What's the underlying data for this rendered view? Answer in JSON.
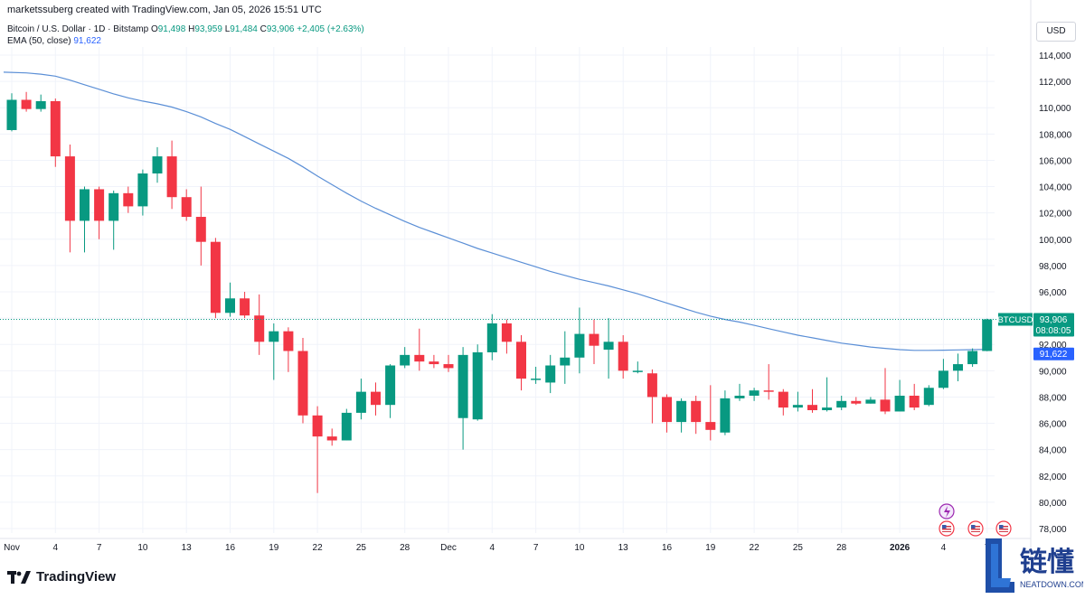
{
  "header": {
    "credit": "marketssuberg created with TradingView.com, Jan 05, 2026 15:51 UTC",
    "symbol": "Bitcoin / U.S. Dollar · 1D · Bitstamp",
    "ohlc": {
      "o_label": "O",
      "o": "91,498",
      "h_label": "H",
      "h": "93,959",
      "l_label": "L",
      "l": "91,484",
      "c_label": "C",
      "c": "93,906",
      "change": "+2,405 (+2.63%)"
    },
    "ema_label": "EMA (50, close)",
    "ema_value": "91,622"
  },
  "currency_button": "USD",
  "footer": {
    "brand": "TradingView"
  },
  "watermark": {
    "cn": "链懂",
    "en": "NEATDOWN.COM"
  },
  "colors": {
    "up": "#089981",
    "down": "#f23645",
    "ema": "#5b8fd6",
    "last_price_line": "#089981",
    "grid": "#f0f3fa"
  },
  "chart_data": {
    "type": "candlestick",
    "interval": "1D",
    "ylim": [
      77000,
      116000
    ],
    "y_ticks": [
      "114,000",
      "112,000",
      "110,000",
      "108,000",
      "106,000",
      "104,000",
      "102,000",
      "100,000",
      "98,000",
      "96,000",
      "94,000",
      "92,000",
      "90,000",
      "88,000",
      "86,000",
      "84,000",
      "82,000",
      "80,000",
      "78,000"
    ],
    "x_ticks": [
      {
        "label": "Nov",
        "i": 0
      },
      {
        "label": "4",
        "i": 3
      },
      {
        "label": "7",
        "i": 6
      },
      {
        "label": "10",
        "i": 9
      },
      {
        "label": "13",
        "i": 12
      },
      {
        "label": "16",
        "i": 15
      },
      {
        "label": "19",
        "i": 18
      },
      {
        "label": "22",
        "i": 21
      },
      {
        "label": "25",
        "i": 24
      },
      {
        "label": "28",
        "i": 27
      },
      {
        "label": "Dec",
        "i": 30
      },
      {
        "label": "4",
        "i": 33
      },
      {
        "label": "7",
        "i": 36
      },
      {
        "label": "10",
        "i": 39
      },
      {
        "label": "13",
        "i": 42
      },
      {
        "label": "16",
        "i": 45
      },
      {
        "label": "19",
        "i": 48
      },
      {
        "label": "22",
        "i": 51
      },
      {
        "label": "25",
        "i": 54
      },
      {
        "label": "28",
        "i": 57
      },
      {
        "label": "2026",
        "i": 61,
        "bold": true
      },
      {
        "label": "4",
        "i": 64
      },
      {
        "label": "7",
        "i": 67
      }
    ],
    "candles": [
      [
        108300,
        110600,
        111100,
        108200
      ],
      [
        110600,
        109900,
        111200,
        109700
      ],
      [
        109900,
        110500,
        111000,
        109700
      ],
      [
        110500,
        106300,
        110700,
        105500
      ],
      [
        106300,
        101400,
        107200,
        99000
      ],
      [
        101400,
        103800,
        104000,
        99000
      ],
      [
        103800,
        101400,
        104000,
        100000
      ],
      [
        101400,
        103500,
        103700,
        99200
      ],
      [
        103500,
        102500,
        104000,
        102000
      ],
      [
        102500,
        105000,
        105300,
        101800
      ],
      [
        105000,
        106300,
        107000,
        104300
      ],
      [
        106300,
        103200,
        107500,
        102300
      ],
      [
        103200,
        101700,
        103800,
        101400
      ],
      [
        101700,
        99800,
        104000,
        98000
      ],
      [
        99800,
        94400,
        100100,
        94000
      ],
      [
        94400,
        95500,
        96700,
        94100
      ],
      [
        95500,
        94200,
        96000,
        94000
      ],
      [
        94200,
        92200,
        95800,
        91200
      ],
      [
        92200,
        93000,
        93600,
        89300
      ],
      [
        93000,
        91500,
        93300,
        89900
      ],
      [
        91500,
        86600,
        92500,
        86000
      ],
      [
        86600,
        85000,
        87300,
        80700
      ],
      [
        85000,
        84700,
        85600,
        84300
      ],
      [
        84700,
        86800,
        87100,
        84700
      ],
      [
        86800,
        88400,
        89400,
        86300
      ],
      [
        88400,
        87400,
        89100,
        86600
      ],
      [
        87400,
        90400,
        90500,
        86400
      ],
      [
        90400,
        91200,
        91800,
        90200
      ],
      [
        91200,
        90700,
        93200,
        90000
      ],
      [
        90700,
        90500,
        91200,
        90200
      ],
      [
        90500,
        90200,
        91200,
        89900
      ],
      [
        86400,
        91200,
        91800,
        84000
      ],
      [
        86300,
        91400,
        92000,
        86200
      ],
      [
        91400,
        93600,
        94300,
        90800
      ],
      [
        93600,
        92200,
        93900,
        91300
      ],
      [
        92200,
        89400,
        92700,
        88500
      ],
      [
        89400,
        89400,
        90300,
        89000
      ],
      [
        89100,
        90400,
        91200,
        88300
      ],
      [
        90400,
        91000,
        93000,
        89000
      ],
      [
        91000,
        92800,
        94800,
        89800
      ],
      [
        92800,
        91900,
        93900,
        90500
      ],
      [
        91600,
        92200,
        94000,
        89400
      ],
      [
        92200,
        90000,
        92700,
        89400
      ],
      [
        90000,
        90000,
        90700,
        89800
      ],
      [
        89800,
        88000,
        90100,
        86000
      ],
      [
        88000,
        86100,
        88200,
        85300
      ],
      [
        86100,
        87700,
        87900,
        85300
      ],
      [
        87700,
        86100,
        88100,
        85200
      ],
      [
        86100,
        85500,
        88900,
        84700
      ],
      [
        85300,
        87900,
        88500,
        85100
      ],
      [
        87900,
        88100,
        89000,
        87700
      ],
      [
        88100,
        88500,
        88700,
        87700
      ],
      [
        88500,
        88400,
        90500,
        87800
      ],
      [
        88400,
        87200,
        88600,
        86600
      ],
      [
        87200,
        87400,
        88400,
        86900
      ],
      [
        87400,
        87000,
        88600,
        86800
      ],
      [
        87000,
        87200,
        89500,
        86900
      ],
      [
        87200,
        87700,
        88100,
        87000
      ],
      [
        87700,
        87500,
        88000,
        87400
      ],
      [
        87500,
        87800,
        88000,
        87500
      ],
      [
        87800,
        86900,
        90200,
        86700
      ],
      [
        86900,
        88100,
        89300,
        86900
      ],
      [
        88100,
        87200,
        89000,
        87000
      ],
      [
        87400,
        88700,
        88900,
        87300
      ],
      [
        88700,
        90000,
        90900,
        88600
      ],
      [
        90000,
        90500,
        91300,
        89200
      ],
      [
        90500,
        91500,
        91700,
        90300
      ],
      [
        91500,
        93906,
        93959,
        91484
      ]
    ],
    "ema_50": [
      112700,
      112650,
      112550,
      112400,
      112100,
      111750,
      111400,
      111050,
      110750,
      110500,
      110300,
      110050,
      109700,
      109300,
      108800,
      108350,
      107800,
      107250,
      106700,
      106150,
      105500,
      104800,
      104150,
      103500,
      102900,
      102350,
      101850,
      101350,
      100900,
      100500,
      100100,
      99700,
      99300,
      98950,
      98600,
      98250,
      97900,
      97550,
      97250,
      96950,
      96700,
      96450,
      96150,
      95850,
      95500,
      95150,
      94800,
      94450,
      94150,
      93900,
      93700,
      93450,
      93200,
      92950,
      92700,
      92500,
      92300,
      92100,
      91950,
      91800,
      91700,
      91600,
      91550,
      91550,
      91560,
      91580,
      91600,
      91622
    ],
    "last_price": {
      "symbol": "BTCUSD",
      "value": 93906,
      "label": "93,906",
      "countdown": "08:08:05"
    },
    "ema_tag": {
      "value": 91622,
      "label": "91,622"
    },
    "event_markers": [
      "crypto-event-icon",
      "us-flag-icon",
      "us-flag-icon",
      "us-flag-icon"
    ]
  }
}
